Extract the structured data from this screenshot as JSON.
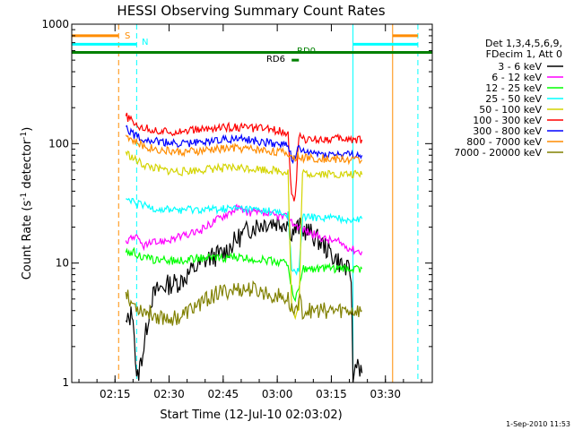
{
  "chart_data": {
    "type": "line",
    "title": "HESSI Observing Summary Count Rates",
    "xlabel": "Start Time (12-Jul-10 02:03:02)",
    "ylabel_main": "Count Rate (s",
    "ylabel_sup1": "-1",
    "ylabel_mid": " detector",
    "ylabel_sup2": "-1",
    "ylabel_end": ")",
    "footer": "1-Sep-2010 11:53",
    "x_ticks": [
      "02:15",
      "02:30",
      "02:45",
      "03:00",
      "03:15",
      "03:30"
    ],
    "x_tick_minutes": [
      12,
      27,
      42,
      57,
      72,
      87
    ],
    "xlim_minutes": [
      0,
      100
    ],
    "y_scale": "log",
    "ylim": [
      1,
      1000
    ],
    "y_ticks": [
      "1",
      "10",
      "100",
      "1000"
    ],
    "legend": {
      "header": [
        "Det 1,3,4,5,6,9,",
        "FDecim 1, Att 0"
      ],
      "entries": [
        {
          "label": "3 - 6 keV",
          "color": "#000000"
        },
        {
          "label": "6 - 12 keV",
          "color": "#ff00ff"
        },
        {
          "label": "12 - 25 keV",
          "color": "#00ff00"
        },
        {
          "label": "25 - 50 keV",
          "color": "#00ffff"
        },
        {
          "label": "50 - 100 keV",
          "color": "#d4d400"
        },
        {
          "label": "100 - 300 keV",
          "color": "#ff0000"
        },
        {
          "label": "300 - 800 keV",
          "color": "#0000ff"
        },
        {
          "label": "800 - 7000 keV",
          "color": "#ff8c00"
        },
        {
          "label": "7000 - 20000 keV",
          "color": "#808000"
        }
      ]
    },
    "flag_bars": [
      {
        "label": "S",
        "color": "#ff8c00",
        "y": 800,
        "segments": [
          [
            0,
            13
          ],
          [
            89,
            96
          ]
        ]
      },
      {
        "label": "N",
        "color": "#00ffff",
        "y": 680,
        "segments": [
          [
            0,
            18
          ],
          [
            78,
            96
          ]
        ]
      },
      {
        "label": "RD0",
        "color": "#008000",
        "y": 580,
        "segments": [
          [
            0,
            100
          ]
        ]
      },
      {
        "label": "RD6",
        "color": "#008000",
        "y": 500,
        "segments": [
          [
            61,
            63
          ]
        ]
      }
    ],
    "vlines": [
      {
        "x": 13,
        "color": "#ff8c00",
        "style": "dashed"
      },
      {
        "x": 18,
        "color": "#00ffff",
        "style": "dashed"
      },
      {
        "x": 78,
        "color": "#00ffff",
        "style": "solid"
      },
      {
        "x": 89,
        "color": "#ff8c00",
        "style": "solid"
      },
      {
        "x": 96,
        "color": "#00ffff",
        "style": "dashed"
      }
    ],
    "series": [
      {
        "name": "3 - 6 keV",
        "color": "#000000",
        "x": [
          15,
          17,
          18,
          20,
          22,
          24,
          26,
          30,
          34,
          38,
          42,
          46,
          50,
          54,
          58,
          60,
          61,
          63,
          66,
          70,
          73,
          76,
          77.5,
          78,
          79,
          80.5
        ],
        "y": [
          3,
          4,
          1,
          2,
          5,
          6,
          6.5,
          7,
          9,
          11,
          12,
          16,
          20,
          22,
          22,
          22,
          18,
          20,
          18,
          14,
          11,
          9,
          8,
          1,
          1.6,
          1.2
        ]
      },
      {
        "name": "6 - 12 keV",
        "color": "#ff00ff",
        "x": [
          15,
          17,
          20,
          24,
          28,
          32,
          36,
          40,
          44,
          46,
          48,
          52,
          56,
          60,
          61,
          63,
          66,
          70,
          74,
          78,
          80.5
        ],
        "y": [
          15,
          17,
          14,
          15,
          16,
          17,
          19,
          23,
          27,
          29,
          27,
          26,
          25,
          24,
          22,
          20,
          18,
          16,
          15,
          13,
          12.5
        ]
      },
      {
        "name": "12 - 25 keV",
        "color": "#00ff00",
        "x": [
          15,
          17,
          20,
          25,
          30,
          35,
          40,
          45,
          50,
          55,
          60,
          61,
          62,
          63,
          64,
          66,
          70,
          75,
          80.5
        ],
        "y": [
          12,
          12.5,
          11,
          10.5,
          10.5,
          11,
          11,
          11.2,
          10.8,
          10.5,
          10,
          6,
          5,
          6,
          9,
          9,
          9,
          9,
          9
        ]
      },
      {
        "name": "25 - 50 keV",
        "color": "#00ffff",
        "x": [
          15,
          17,
          20,
          25,
          30,
          35,
          40,
          45,
          50,
          55,
          60,
          61,
          62,
          63,
          64,
          66,
          70,
          75,
          80.5
        ],
        "y": [
          34,
          32,
          30,
          28,
          28,
          28,
          28,
          28.5,
          28,
          27,
          25,
          9,
          8,
          9,
          24,
          24,
          24,
          23.5,
          23.5
        ]
      },
      {
        "name": "50 - 100 keV",
        "color": "#d4d400",
        "x": [
          15,
          17,
          20,
          25,
          30,
          35,
          40,
          45,
          50,
          55,
          60,
          61,
          62,
          63,
          64,
          66,
          70,
          75,
          80.5
        ],
        "y": [
          85,
          75,
          66,
          60,
          58,
          60,
          62,
          63,
          62,
          60,
          58,
          4,
          3.5,
          4,
          56,
          56,
          56,
          55,
          55
        ]
      },
      {
        "name": "100 - 300 keV",
        "color": "#ff0000",
        "x": [
          15,
          17,
          20,
          25,
          30,
          35,
          40,
          45,
          50,
          55,
          60,
          61,
          62,
          63,
          64,
          66,
          70,
          75,
          80.5
        ],
        "y": [
          170,
          150,
          135,
          125,
          128,
          130,
          135,
          138,
          135,
          132,
          125,
          35,
          34,
          120,
          108,
          108,
          110,
          110,
          108
        ]
      },
      {
        "name": "300 - 800 keV",
        "color": "#0000ff",
        "x": [
          15,
          17,
          20,
          25,
          30,
          35,
          40,
          45,
          50,
          55,
          60,
          61,
          62,
          63,
          64,
          66,
          70,
          75,
          80.5
        ],
        "y": [
          140,
          120,
          110,
          102,
          100,
          102,
          108,
          110,
          106,
          102,
          98,
          75,
          74,
          95,
          84,
          84,
          82,
          81,
          80
        ]
      },
      {
        "name": "800 - 7000 keV",
        "color": "#ff8c00",
        "x": [
          15,
          17,
          20,
          25,
          30,
          35,
          40,
          45,
          50,
          55,
          60,
          61,
          62,
          63,
          64,
          66,
          70,
          75,
          80.5
        ],
        "y": [
          120,
          105,
          95,
          88,
          85,
          86,
          90,
          92,
          90,
          87,
          83,
          78,
          76,
          80,
          76,
          76,
          75,
          74,
          73
        ]
      },
      {
        "name": "7000 - 20000 keV",
        "color": "#808000",
        "x": [
          15,
          17,
          20,
          25,
          30,
          35,
          40,
          45,
          50,
          55,
          60,
          61,
          62,
          63,
          64,
          66,
          70,
          75,
          80.5
        ],
        "y": [
          6,
          4.5,
          4,
          3.5,
          3.5,
          4.5,
          5.5,
          6,
          6,
          5.5,
          5,
          4,
          4,
          5,
          4,
          4,
          4,
          4,
          4
        ]
      }
    ]
  }
}
